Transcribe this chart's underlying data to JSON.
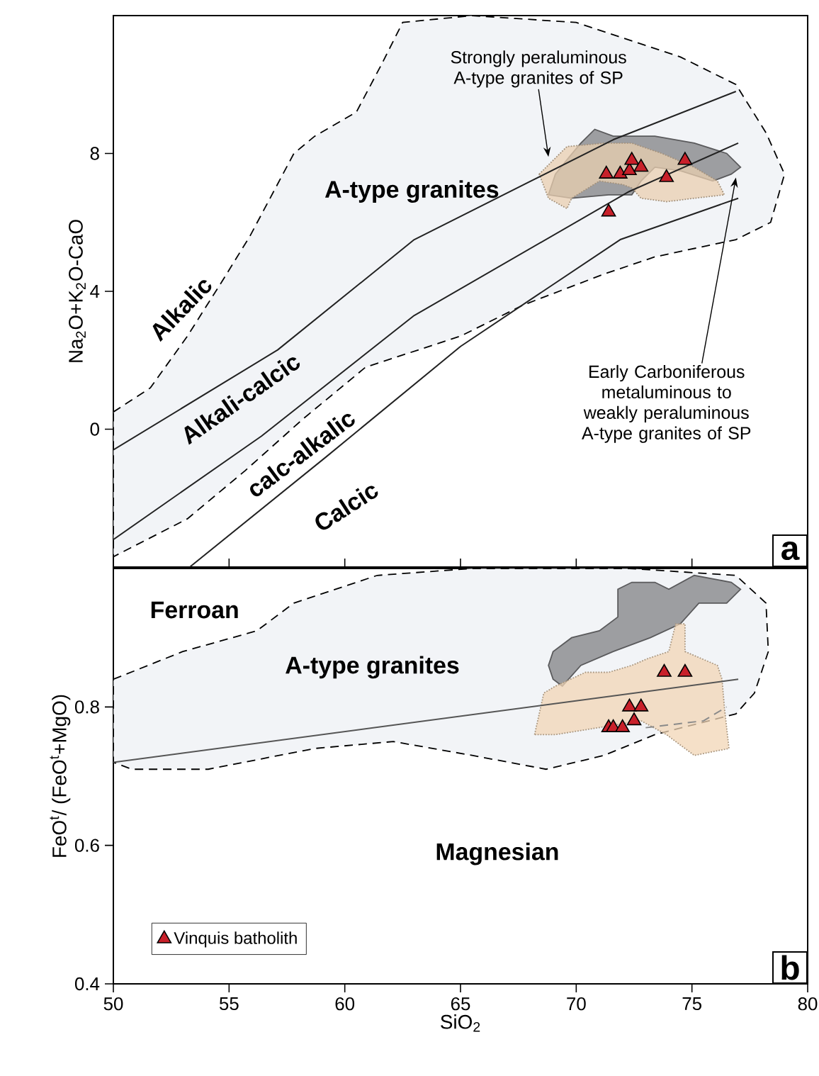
{
  "chart_data": [
    {
      "type": "scatter",
      "title": "a",
      "ylabel": "Na$_{2}$O+K$_{2}$O-CaO",
      "xlim": [
        50,
        80
      ],
      "ylim": [
        -4,
        12
      ],
      "xticks": [
        50,
        55,
        60,
        65,
        70,
        75,
        80
      ],
      "yticks": [
        0,
        4,
        8
      ],
      "tick_labels": "y",
      "series": [
        {
          "type": "area",
          "color": "#eef0f4",
          "line_style": "dashed",
          "x": [
            50.0,
            51.6,
            53.2,
            54.8,
            55.9,
            57.8,
            58.7,
            60.5,
            61.6,
            62.5,
            65.5,
            70.0,
            74.5,
            76.9,
            78.2,
            79.0,
            78.4,
            76.9,
            73.4,
            71.2,
            67.7,
            65.0,
            60.9,
            58.2,
            55.7,
            53.2,
            50.0
          ],
          "values": [
            0.5,
            1.2,
            2.7,
            4.4,
            5.6,
            8.0,
            8.5,
            9.2,
            10.6,
            11.8,
            12.0,
            11.8,
            10.8,
            10.0,
            8.6,
            7.4,
            6.0,
            5.5,
            5.0,
            4.5,
            3.6,
            2.7,
            1.8,
            0.3,
            -1.2,
            -2.6,
            -3.7
          ]
        },
        {
          "type": "area",
          "color": "#808184",
          "line_style": "solid",
          "x": [
            70.2,
            70.8,
            71.6,
            73.4,
            75.1,
            76.5,
            77.1,
            76.7,
            75.9,
            74.5,
            73.4,
            72.8,
            72.4,
            71.4,
            69.8,
            68.8,
            69.1,
            69.7
          ],
          "values": [
            8.3,
            8.7,
            8.5,
            8.5,
            8.3,
            8.0,
            7.6,
            7.4,
            7.2,
            7.5,
            7.6,
            7.2,
            6.8,
            6.8,
            6.7,
            6.8,
            7.4,
            7.9
          ]
        },
        {
          "type": "area",
          "color": "#e9cfb0",
          "line_style": "dotted",
          "x": [
            68.4,
            69.6,
            71.2,
            72.4,
            73.7,
            75.1,
            76.1,
            76.4,
            75.1,
            73.9,
            72.8,
            72.4,
            72.0,
            71.0,
            69.8,
            69.6,
            68.8
          ],
          "values": [
            7.4,
            8.2,
            8.3,
            8.3,
            8.0,
            7.6,
            7.2,
            6.8,
            6.7,
            6.6,
            6.7,
            7.0,
            7.1,
            7.2,
            6.7,
            6.4,
            6.7
          ]
        },
        {
          "type": "line",
          "color": "#222222",
          "line_style": "solid",
          "x": [
            50.0,
            57.1,
            63.0,
            71.6,
            76.9
          ],
          "values": [
            -0.6,
            2.3,
            5.5,
            8.4,
            9.8
          ]
        },
        {
          "type": "line",
          "color": "#222222",
          "line_style": "solid",
          "x": [
            50.0,
            56.4,
            63.0,
            72.3,
            77.0
          ],
          "values": [
            -3.2,
            -0.2,
            3.3,
            6.9,
            8.3
          ]
        },
        {
          "type": "line",
          "color": "#222222",
          "line_style": "solid",
          "x": [
            53.3,
            59.2,
            65.0,
            71.9,
            77.0
          ],
          "values": [
            -4.0,
            -0.8,
            2.4,
            5.5,
            6.7
          ]
        },
        {
          "marker": "triangle",
          "color": "#c8202a",
          "x": [
            71.3,
            71.9,
            72.3,
            72.4,
            72.8,
            73.9,
            74.7,
            71.4
          ],
          "values": [
            7.4,
            7.4,
            7.5,
            7.8,
            7.6,
            7.3,
            7.8,
            6.3
          ]
        }
      ],
      "annotations": [
        "A-type granites",
        "Alkalic",
        "Alkali-calcic",
        "calc-alkalic",
        "Calcic",
        {
          "text": "Strongly peraluminous A-type granites of SP",
          "x": 68.8,
          "y": 7.9
        },
        {
          "text": "Early Carboniferous metaluminous to weakly peraluminous A-type granites of SP",
          "x": 76.9,
          "y": 7.3
        }
      ]
    },
    {
      "type": "scatter",
      "title": "b",
      "xlabel": "SiO$_{2}$",
      "ylabel": "FeO$^{t}$/ (FeO$^{t}$+MgO)",
      "xlim": [
        50,
        80
      ],
      "ylim": [
        0.4,
        1.0
      ],
      "xticks": [
        50,
        55,
        60,
        65,
        70,
        75,
        80
      ],
      "yticks": [
        0.4,
        0.6,
        0.8
      ],
      "legend": "bottom left",
      "series": [
        {
          "type": "area",
          "color": "#eef0f4",
          "line_style": "dashed",
          "x": [
            50.0,
            53.0,
            56.2,
            57.8,
            61.4,
            65.5,
            72.3,
            76.9,
            78.2,
            78.3,
            77.7,
            76.9,
            73.4,
            71.2,
            68.7,
            65.5,
            62.1,
            58.7,
            54.1,
            50.8,
            50.0
          ],
          "values": [
            0.84,
            0.88,
            0.91,
            0.95,
            0.99,
            1.0,
            1.0,
            0.99,
            0.95,
            0.88,
            0.82,
            0.79,
            0.76,
            0.73,
            0.71,
            0.73,
            0.75,
            0.74,
            0.71,
            0.71,
            0.72
          ]
        },
        {
          "type": "area",
          "color": "#808184",
          "line_style": "solid",
          "x": [
            68.8,
            69.0,
            69.4,
            70.2,
            71.6,
            73.2,
            74.5,
            75.3,
            76.5,
            77.1,
            76.7,
            75.1,
            74.0,
            73.4,
            72.4,
            71.8,
            71.8,
            71.0,
            69.8,
            69.0
          ],
          "values": [
            0.86,
            0.84,
            0.83,
            0.86,
            0.88,
            0.9,
            0.92,
            0.95,
            0.95,
            0.97,
            0.98,
            0.99,
            0.97,
            0.98,
            0.98,
            0.97,
            0.93,
            0.91,
            0.9,
            0.88
          ]
        },
        {
          "type": "area",
          "color": "#f2d6b6",
          "line_style": "dotted",
          "x": [
            68.2,
            68.6,
            69.1,
            70.4,
            71.4,
            72.4,
            73.1,
            74.0,
            74.3,
            74.7,
            74.7,
            76.1,
            76.3,
            76.4,
            76.6,
            75.1,
            73.9,
            72.8,
            69.1
          ],
          "values": [
            0.76,
            0.82,
            0.83,
            0.85,
            0.85,
            0.86,
            0.87,
            0.88,
            0.92,
            0.92,
            0.88,
            0.86,
            0.84,
            0.8,
            0.74,
            0.73,
            0.76,
            0.78,
            0.76
          ]
        },
        {
          "type": "line",
          "color": "#555555",
          "line_style": "solid",
          "x": [
            50.0,
            77.0
          ],
          "values": [
            0.72,
            0.84
          ]
        },
        {
          "type": "line",
          "color": "#8a8a8a",
          "line_style": "dashed",
          "x": [
            73.0,
            75.5,
            76.5
          ],
          "values": [
            0.77,
            0.78,
            0.8
          ]
        },
        {
          "marker": "triangle",
          "name": "Vinquis batholith",
          "color": "#c8202a",
          "x": [
            71.4,
            71.6,
            72.0,
            72.3,
            72.5,
            72.8,
            73.8,
            74.7
          ],
          "values": [
            0.77,
            0.77,
            0.77,
            0.8,
            0.78,
            0.8,
            0.85,
            0.85
          ]
        }
      ],
      "annotations": [
        "Ferroan",
        "A-type granites",
        "Magnesian"
      ]
    }
  ]
}
